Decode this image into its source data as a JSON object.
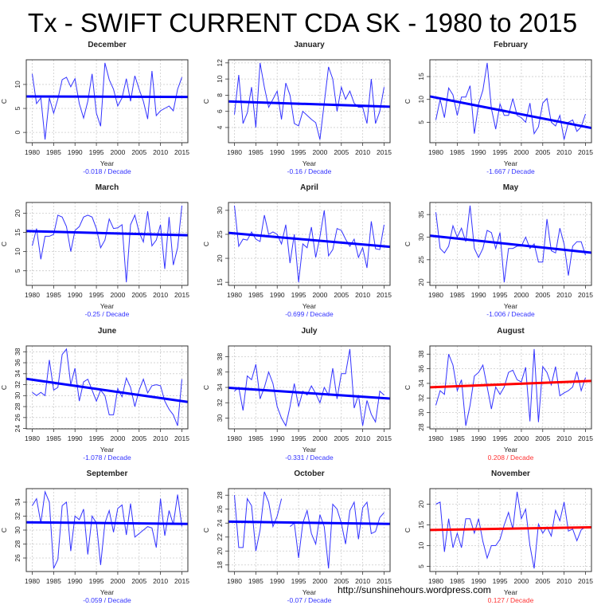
{
  "title": "Tx - SWIFT CURRENT CDA SK - 1980 to 2015",
  "footer": "http://sunshinehours.wordpress.com",
  "colors": {
    "series": "#3333ff",
    "trend_negative": "#0000ff",
    "trend_positive": "#ff0000",
    "grid": "#cccccc"
  },
  "chart_data": [
    {
      "type": "line",
      "title": "December",
      "xlabel": "Year",
      "ylabel": "C",
      "trend_label": "-0.018  / Decade",
      "trend": [
        7.5,
        7.4
      ],
      "yticks": [
        0,
        5,
        10
      ],
      "xticks": [
        1980,
        1985,
        1990,
        1995,
        2000,
        2005,
        2010,
        2015
      ],
      "grid": true,
      "x_start": 1980,
      "values": [
        12.2,
        6,
        7.2,
        -1.5,
        7.2,
        4,
        7,
        11,
        11.5,
        9.5,
        11.2,
        6,
        3,
        6.5,
        12.2,
        4,
        1.3,
        14.5,
        11,
        9,
        5.5,
        7.2,
        11.2,
        6.5,
        11.8,
        9,
        6.5,
        2.8,
        12.8,
        3.5,
        4.5,
        5,
        5.5,
        4.5,
        9,
        11.5
      ]
    },
    {
      "type": "line",
      "title": "January",
      "xlabel": "Year",
      "ylabel": "C",
      "trend_label": "-0.16  / Decade",
      "trend": [
        7.2,
        6.6
      ],
      "yticks": [
        4,
        6,
        8,
        10,
        12
      ],
      "xticks": [
        1980,
        1985,
        1990,
        1995,
        2000,
        2005,
        2010,
        2015
      ],
      "grid": true,
      "x_start": 1980,
      "values": [
        5.6,
        10.5,
        4.5,
        5.8,
        9,
        4,
        12,
        9,
        6.5,
        7.5,
        8.5,
        5,
        9.5,
        8,
        4.5,
        4.2,
        6,
        5.5,
        5,
        4.6,
        2.5,
        7,
        11.5,
        10,
        6,
        9,
        7.5,
        8.5,
        7,
        6.5,
        6.5,
        4.5,
        10,
        4.5,
        6,
        9
      ]
    },
    {
      "type": "line",
      "title": "February",
      "xlabel": "Year",
      "ylabel": "C",
      "trend_label": "-1.667  / Decade",
      "trend": [
        10.4,
        4.0
      ],
      "yticks": [
        5,
        10,
        15
      ],
      "xticks": [
        1980,
        1985,
        1990,
        1995,
        2000,
        2005,
        2010,
        2015
      ],
      "grid": true,
      "x_start": 1980,
      "values": [
        5.5,
        10,
        6,
        12.5,
        11,
        6.5,
        10.5,
        10.5,
        13,
        2.5,
        9,
        12,
        18,
        8,
        3.5,
        9,
        6.5,
        6.5,
        10.2,
        6.5,
        6,
        5,
        9.2,
        2.5,
        4,
        9.2,
        10.2,
        5,
        4.2,
        6.5,
        1.2,
        5,
        5.5,
        3,
        4,
        6.8
      ]
    },
    {
      "type": "line",
      "title": "March",
      "xlabel": "Year",
      "ylabel": "C",
      "trend_label": "-0.25  / Decade",
      "trend": [
        15.3,
        14.3
      ],
      "yticks": [
        5,
        10,
        15,
        20
      ],
      "xticks": [
        1980,
        1985,
        1990,
        1995,
        2000,
        2005,
        2010,
        2015
      ],
      "grid": true,
      "x_start": 1980,
      "values": [
        11.5,
        16,
        8,
        14,
        14,
        14.5,
        19.5,
        19,
        16.5,
        10,
        15.5,
        16.5,
        19,
        19.5,
        19,
        16,
        11,
        13,
        18.5,
        16,
        16.2,
        17,
        2,
        17,
        19.5,
        15,
        12.5,
        20.5,
        11.5,
        13,
        17,
        5.5,
        19,
        6.5,
        11,
        22
      ]
    },
    {
      "type": "line",
      "title": "April",
      "xlabel": "Year",
      "ylabel": "C",
      "trend_label": "-0.699  / Decade",
      "trend": [
        25.2,
        22.5
      ],
      "yticks": [
        15,
        20,
        25,
        30
      ],
      "xticks": [
        1980,
        1985,
        1990,
        1995,
        2000,
        2005,
        2010,
        2015
      ],
      "grid": true,
      "x_start": 1980,
      "values": [
        31,
        22.5,
        24,
        23.8,
        25.5,
        24,
        23.5,
        29,
        25,
        25.5,
        25,
        23,
        27,
        19,
        25,
        15,
        23,
        22.2,
        26.5,
        20.2,
        24.5,
        30,
        20.5,
        21.8,
        26.2,
        25.8,
        24,
        22.5,
        24,
        20.2,
        22.2,
        18,
        27.7,
        22,
        21.8,
        27
      ]
    },
    {
      "type": "line",
      "title": "May",
      "xlabel": "Year",
      "ylabel": "C",
      "trend_label": "-1.006  / Decade",
      "trend": [
        30.2,
        26.7
      ],
      "yticks": [
        20,
        25,
        30,
        35
      ],
      "xticks": [
        1980,
        1985,
        1990,
        1995,
        2000,
        2005,
        2010,
        2015
      ],
      "grid": true,
      "x_start": 1980,
      "values": [
        35.5,
        27.5,
        26.5,
        28,
        32.5,
        30,
        32,
        29,
        37,
        27.5,
        25.5,
        27.5,
        31.5,
        31,
        27.5,
        31,
        20,
        27.5,
        27.5,
        28,
        28,
        30,
        27.5,
        28.5,
        24.5,
        24.5,
        34,
        27,
        26.5,
        32,
        28.5,
        21.5,
        28,
        29,
        29,
        26
      ]
    },
    {
      "type": "line",
      "title": "June",
      "xlabel": "Year",
      "ylabel": "C",
      "trend_label": "-1.078  / Decade",
      "trend": [
        32.9,
        29.0
      ],
      "yticks": [
        24,
        26,
        28,
        30,
        32,
        34,
        36,
        38
      ],
      "xticks": [
        1980,
        1985,
        1990,
        1995,
        2000,
        2005,
        2010,
        2015
      ],
      "grid": true,
      "x_start": 1980,
      "values": [
        30.6,
        30,
        30.6,
        30,
        36.5,
        31,
        31.5,
        37.5,
        38.5,
        32,
        35,
        29,
        32.5,
        33,
        31,
        29,
        31,
        30,
        26.5,
        26.5,
        31.3,
        29.8,
        33.2,
        31.5,
        28,
        31,
        33,
        30.5,
        31.8,
        32,
        31.8,
        29,
        27.5,
        26.5,
        24.5,
        33
      ]
    },
    {
      "type": "line",
      "title": "July",
      "xlabel": "Year",
      "ylabel": "C",
      "trend_label": "-0.331  / Decade",
      "trend": [
        33.9,
        32.6
      ],
      "yticks": [
        30,
        32,
        34,
        36,
        38
      ],
      "xticks": [
        1980,
        1985,
        1990,
        1995,
        2000,
        2005,
        2010,
        2015
      ],
      "grid": true,
      "x_start": 1980,
      "values": [
        33.5,
        34,
        31,
        35.5,
        35,
        37,
        32.5,
        34,
        36,
        34.5,
        31.5,
        30,
        29,
        31.5,
        34.5,
        31.5,
        33.5,
        33,
        34.2,
        33.2,
        32,
        34,
        33,
        36.5,
        32.5,
        35.8,
        35.8,
        39,
        31.3,
        33,
        29,
        32.3,
        30.5,
        29.5,
        33.5,
        33
      ]
    },
    {
      "type": "line",
      "title": "August",
      "xlabel": "Year",
      "ylabel": "C",
      "trend_label": "0.208  / Decade",
      "trend": [
        33.5,
        34.3
      ],
      "yticks": [
        28,
        30,
        32,
        34,
        36,
        38
      ],
      "xticks": [
        1980,
        1985,
        1990,
        1995,
        2000,
        2005,
        2010,
        2015
      ],
      "grid": true,
      "x_start": 1980,
      "values": [
        31,
        33,
        32.5,
        38,
        36.5,
        33,
        34.5,
        28.2,
        31,
        35,
        35.5,
        36.5,
        33.5,
        30.5,
        33.5,
        32.5,
        33.5,
        35.5,
        35.8,
        34.5,
        34.2,
        36.2,
        28.8,
        38.7,
        28.7,
        36.3,
        35.5,
        33.8,
        36.3,
        32.3,
        32.7,
        33,
        33.5,
        35.6,
        33,
        34.8
      ]
    },
    {
      "type": "line",
      "title": "September",
      "xlabel": "Year",
      "ylabel": "C",
      "trend_label": "-0.059  / Decade",
      "trend": [
        31.1,
        30.9
      ],
      "yticks": [
        26,
        28,
        30,
        32,
        34
      ],
      "xticks": [
        1980,
        1985,
        1990,
        1995,
        2000,
        2005,
        2010,
        2015
      ],
      "grid": true,
      "x_start": 1980,
      "values": [
        33.5,
        34.5,
        31,
        35.5,
        34,
        24.5,
        25.8,
        33.5,
        34,
        27,
        32,
        31.5,
        33,
        26.5,
        32,
        31,
        25,
        31,
        32.8,
        29.7,
        33.1,
        33.6,
        29.3,
        33.8,
        29,
        29.5,
        30,
        30.5,
        30.3,
        27.5,
        34.5,
        29.2,
        32.8,
        30.8,
        35.1,
        30.5
      ]
    },
    {
      "type": "line",
      "title": "October",
      "xlabel": "Year",
      "ylabel": "C",
      "trend_label": "-0.07  / Decade",
      "trend": [
        24.2,
        23.9
      ],
      "yticks": [
        18,
        20,
        22,
        24,
        26,
        28
      ],
      "xticks": [
        1980,
        1985,
        1990,
        1995,
        2000,
        2005,
        2010,
        2015
      ],
      "grid": true,
      "x_start": 1980,
      "values": [
        28,
        20.5,
        20.5,
        27.5,
        26.5,
        20,
        23,
        28.5,
        27,
        23.5,
        25,
        27.5,
        null,
        23.5,
        24,
        19,
        24,
        25.8,
        22.5,
        21,
        25.2,
        23.5,
        17.5,
        26.7,
        26,
        24,
        21,
        25.8,
        27,
        21.7,
        26.2,
        27,
        22.5,
        22.8,
        24.8,
        25.5
      ]
    },
    {
      "type": "line",
      "title": "November",
      "xlabel": "Year",
      "ylabel": "C",
      "trend_label": "0.127  / Decade",
      "trend": [
        13.8,
        14.4
      ],
      "yticks": [
        5,
        10,
        15,
        20
      ],
      "xticks": [
        1980,
        1985,
        1990,
        1995,
        2000,
        2005,
        2010,
        2015
      ],
      "grid": true,
      "x_start": 1980,
      "values": [
        20,
        20.5,
        8.5,
        16.5,
        9.5,
        13,
        9.5,
        16.5,
        16.5,
        13,
        16.5,
        11,
        7,
        10,
        10,
        11.5,
        15,
        18,
        14,
        23,
        16.5,
        18.8,
        10,
        4.5,
        15.2,
        13,
        14.5,
        12.3,
        18.5,
        16,
        20.5,
        13.5,
        14,
        11.2,
        13.8,
        14.5
      ]
    }
  ]
}
